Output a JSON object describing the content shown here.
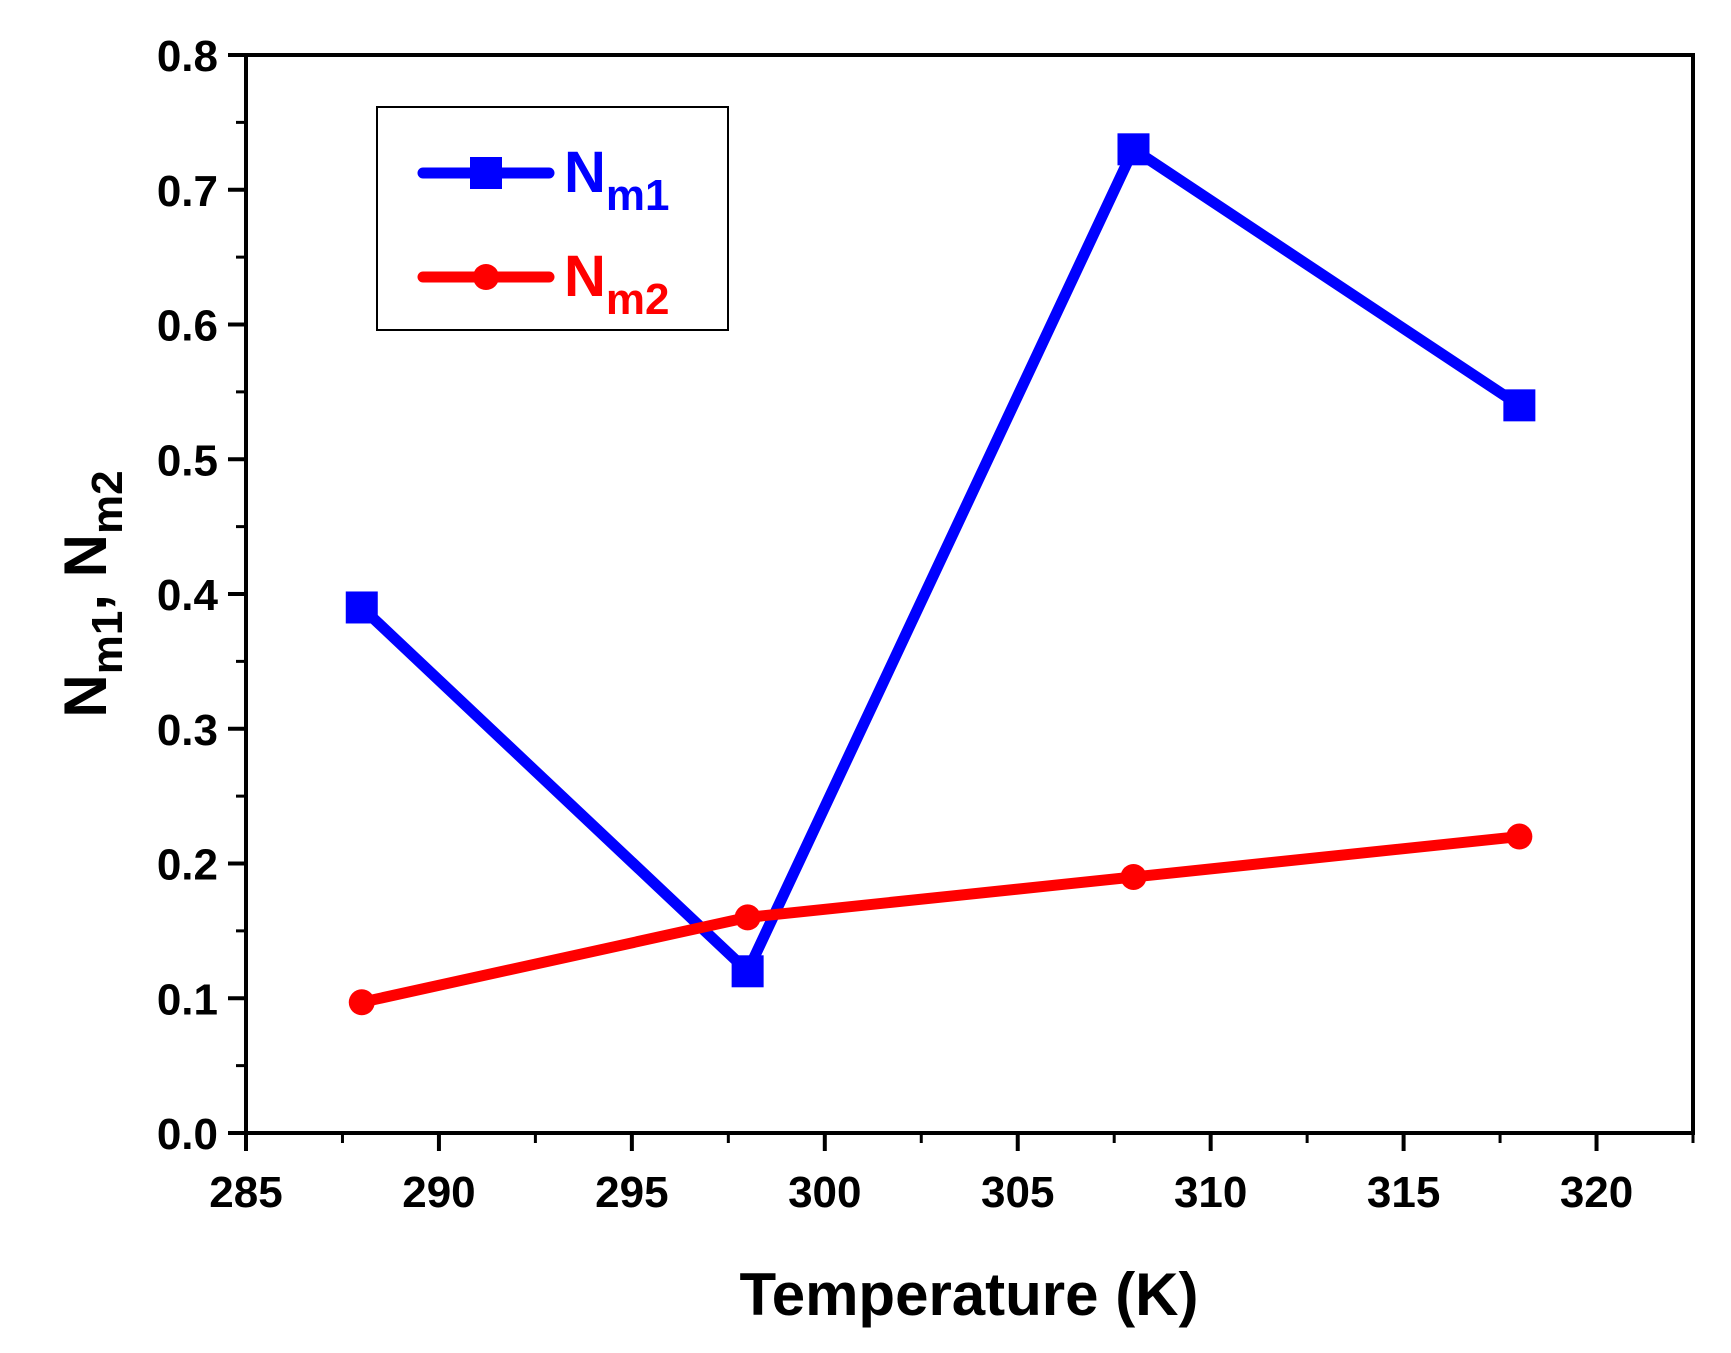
{
  "chart_data": {
    "type": "line",
    "title": "",
    "xlabel": "Temperature (K)",
    "ylabel": {
      "main": "N",
      "sub1": "m1",
      "sep": ", ",
      "main2": "N",
      "sub2": "m2"
    },
    "xlim": [
      285,
      322.5
    ],
    "ylim": [
      0.0,
      0.8
    ],
    "xticks": [
      285,
      290,
      295,
      300,
      305,
      310,
      315,
      320
    ],
    "xtick_labels": [
      "285",
      "290",
      "295",
      "300",
      "305",
      "310",
      "315",
      "320"
    ],
    "yticks": [
      0.0,
      0.1,
      0.2,
      0.3,
      0.4,
      0.5,
      0.6,
      0.7,
      0.8
    ],
    "ytick_labels": [
      "0.0",
      "0.1",
      "0.2",
      "0.3",
      "0.4",
      "0.5",
      "0.6",
      "0.7",
      "0.8"
    ],
    "grid": false,
    "legend_position": "top-left",
    "series": [
      {
        "name": "Nm1",
        "label_main": "N",
        "label_sub": "m1",
        "color": "#0000ff",
        "marker": "square",
        "x": [
          288,
          298,
          308,
          318
        ],
        "y": [
          0.39,
          0.12,
          0.73,
          0.54
        ]
      },
      {
        "name": "Nm2",
        "label_main": "N",
        "label_sub": "m2",
        "color": "#ff0000",
        "marker": "circle",
        "x": [
          288,
          298,
          308,
          318
        ],
        "y": [
          0.097,
          0.16,
          0.19,
          0.22
        ]
      }
    ]
  }
}
